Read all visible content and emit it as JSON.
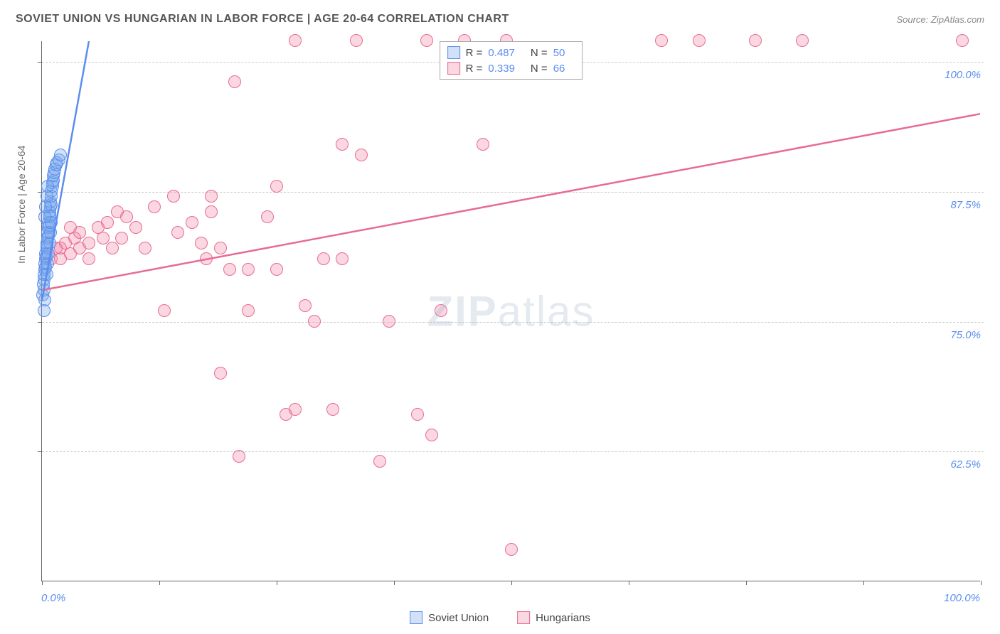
{
  "title": "SOVIET UNION VS HUNGARIAN IN LABOR FORCE | AGE 20-64 CORRELATION CHART",
  "source": "Source: ZipAtlas.com",
  "watermark_bold": "ZIP",
  "watermark_light": "atlas",
  "y_axis_title": "In Labor Force | Age 20-64",
  "chart": {
    "type": "scatter",
    "xlim": [
      0,
      100
    ],
    "ylim": [
      50,
      102
    ],
    "x_tick_positions": [
      0,
      12.5,
      25,
      37.5,
      50,
      62.5,
      75,
      87.5,
      100
    ],
    "x_labels": {
      "0": "0.0%",
      "100": "100.0%"
    },
    "y_ticks": [
      62.5,
      75.0,
      87.5,
      100.0
    ],
    "y_labels": [
      "62.5%",
      "75.0%",
      "87.5%",
      "100.0%"
    ],
    "background_color": "#ffffff",
    "grid_color": "#cccccc",
    "axis_value_color": "#5b8def",
    "point_radius": 9,
    "point_border_width": 1.5
  },
  "series": {
    "soviet": {
      "label": "Soviet Union",
      "fill_color": "rgba(120, 170, 235, 0.35)",
      "border_color": "#5b8def",
      "R": "0.487",
      "N": "50",
      "trend": {
        "x1": 0,
        "y1": 77,
        "x2": 5,
        "y2": 102,
        "dash_ext_x": 7,
        "dash_ext_y": 112
      },
      "points": [
        [
          0.1,
          77.5
        ],
        [
          0.2,
          78
        ],
        [
          0.2,
          79
        ],
        [
          0.3,
          80
        ],
        [
          0.3,
          80.5
        ],
        [
          0.4,
          81
        ],
        [
          0.4,
          81.5
        ],
        [
          0.5,
          82
        ],
        [
          0.5,
          82.5
        ],
        [
          0.6,
          83
        ],
        [
          0.6,
          83.5
        ],
        [
          0.7,
          84
        ],
        [
          0.7,
          84.5
        ],
        [
          0.8,
          85
        ],
        [
          0.8,
          85.5
        ],
        [
          0.9,
          86
        ],
        [
          0.9,
          86.5
        ],
        [
          1.0,
          87
        ],
        [
          1.0,
          87.5
        ],
        [
          1.1,
          88
        ],
        [
          1.1,
          88.3
        ],
        [
          1.2,
          88.5
        ],
        [
          1.2,
          89
        ],
        [
          1.3,
          89.3
        ],
        [
          1.4,
          89.6
        ],
        [
          1.5,
          90
        ],
        [
          1.6,
          90.2
        ],
        [
          1.8,
          90.5
        ],
        [
          2.0,
          91
        ],
        [
          0.2,
          76
        ],
        [
          0.3,
          77
        ],
        [
          0.15,
          78.5
        ],
        [
          0.25,
          79.5
        ],
        [
          0.35,
          80.2
        ],
        [
          0.45,
          81.2
        ],
        [
          0.55,
          82.2
        ],
        [
          0.65,
          83.2
        ],
        [
          0.75,
          84.2
        ],
        [
          0.85,
          85.2
        ],
        [
          0.95,
          86.2
        ],
        [
          0.5,
          79.5
        ],
        [
          0.6,
          80.5
        ],
        [
          0.7,
          81.5
        ],
        [
          0.8,
          82.5
        ],
        [
          0.9,
          83.5
        ],
        [
          1.0,
          84.5
        ],
        [
          0.3,
          85
        ],
        [
          0.4,
          86
        ],
        [
          0.5,
          87
        ],
        [
          0.6,
          88
        ]
      ]
    },
    "hungarian": {
      "label": "Hungarians",
      "fill_color": "rgba(240, 140, 170, 0.35)",
      "border_color": "#e86b94",
      "R": "0.339",
      "N": "66",
      "trend": {
        "x1": 0,
        "y1": 78,
        "x2": 100,
        "y2": 95
      },
      "points": [
        [
          1,
          81
        ],
        [
          1.5,
          82
        ],
        [
          2,
          81
        ],
        [
          2,
          82
        ],
        [
          2.5,
          82.5
        ],
        [
          3,
          81.5
        ],
        [
          3,
          84
        ],
        [
          3.5,
          83
        ],
        [
          4,
          83.5
        ],
        [
          4,
          82
        ],
        [
          5,
          82.5
        ],
        [
          5,
          81
        ],
        [
          6,
          84
        ],
        [
          6.5,
          83
        ],
        [
          7,
          84.5
        ],
        [
          7.5,
          82
        ],
        [
          8,
          85.5
        ],
        [
          8.5,
          83
        ],
        [
          9,
          85
        ],
        [
          10,
          84
        ],
        [
          11,
          82
        ],
        [
          12,
          86
        ],
        [
          13,
          76
        ],
        [
          14,
          87
        ],
        [
          17,
          82.5
        ],
        [
          18,
          85.5
        ],
        [
          18,
          87
        ],
        [
          19,
          70
        ],
        [
          20,
          80
        ],
        [
          20.5,
          98
        ],
        [
          21,
          62
        ],
        [
          22,
          76
        ],
        [
          22,
          80
        ],
        [
          24,
          85
        ],
        [
          25,
          88
        ],
        [
          25,
          80
        ],
        [
          26,
          66
        ],
        [
          27,
          66.5
        ],
        [
          27,
          102
        ],
        [
          28,
          76.5
        ],
        [
          29,
          75
        ],
        [
          30,
          81
        ],
        [
          31,
          66.5
        ],
        [
          32,
          81
        ],
        [
          32,
          92
        ],
        [
          33.5,
          102
        ],
        [
          34,
          91
        ],
        [
          36,
          61.5
        ],
        [
          37,
          75
        ],
        [
          40,
          66
        ],
        [
          41,
          102
        ],
        [
          41.5,
          64
        ],
        [
          42.5,
          76
        ],
        [
          45,
          102
        ],
        [
          47,
          92
        ],
        [
          49.5,
          102
        ],
        [
          50,
          53
        ],
        [
          66,
          102
        ],
        [
          70,
          102
        ],
        [
          76,
          102
        ],
        [
          81,
          102
        ],
        [
          98,
          102
        ],
        [
          17.5,
          81
        ],
        [
          19,
          82
        ],
        [
          14.5,
          83.5
        ],
        [
          16,
          84.5
        ]
      ]
    }
  },
  "legend_labels": {
    "R": "R =",
    "N": "N ="
  }
}
